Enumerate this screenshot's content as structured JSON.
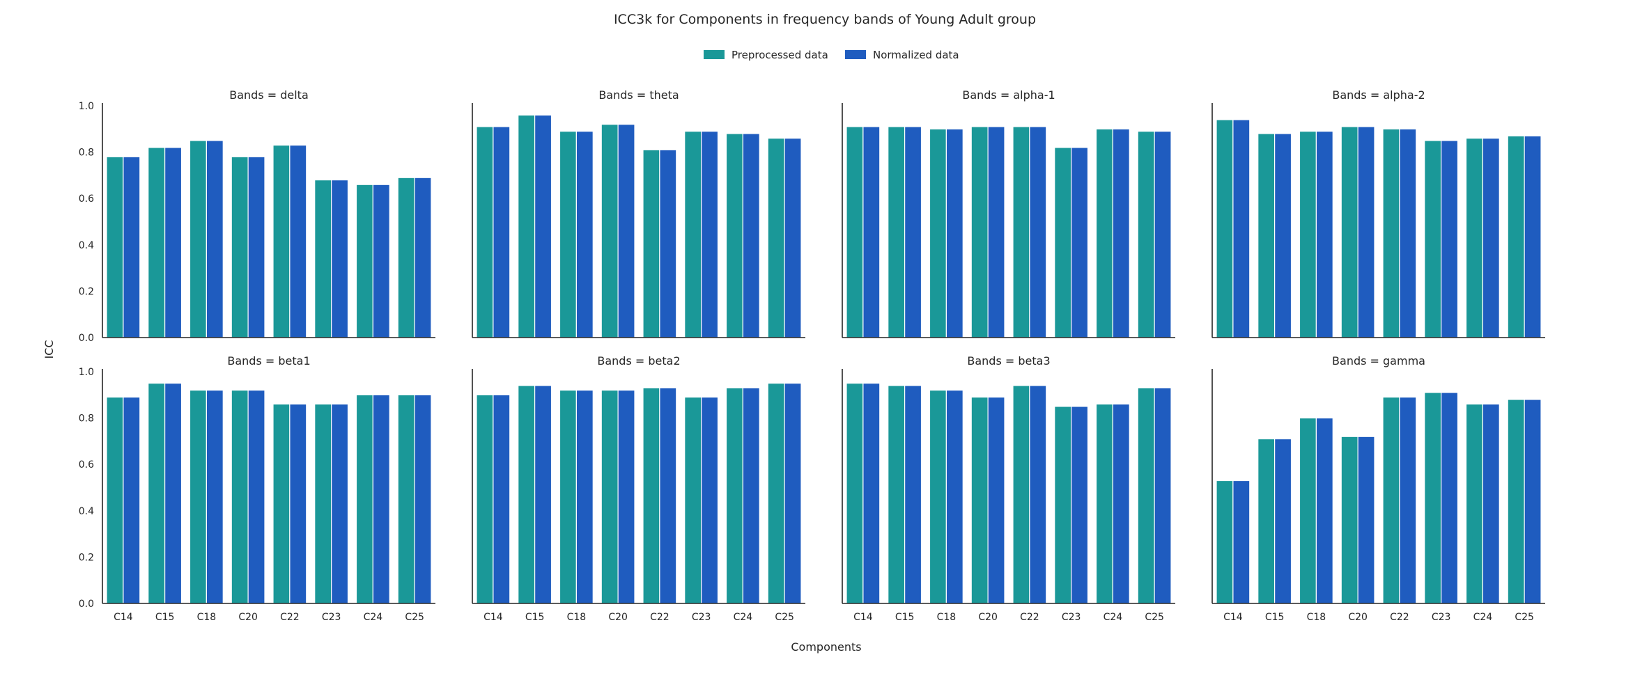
{
  "chart_data": {
    "type": "bar",
    "title": "ICC3k for Components in frequency bands of Young Adult group",
    "xlabel": "Components",
    "ylabel": "ICC",
    "ylim": [
      0,
      1
    ],
    "yticks": [
      "0.0",
      "0.2",
      "0.4",
      "0.6",
      "0.8",
      "1.0"
    ],
    "legend_position": "top-center",
    "categories": [
      "C14",
      "C15",
      "C18",
      "C20",
      "C22",
      "C23",
      "C24",
      "C25"
    ],
    "series_info": [
      {
        "name": "Preprocessed data",
        "color": "#1a9898"
      },
      {
        "name": "Normalized data",
        "color": "#1f5cbf"
      }
    ],
    "panels": [
      {
        "title": "Bands = delta",
        "preprocessed": [
          0.78,
          0.82,
          0.85,
          0.78,
          0.83,
          0.68,
          0.66,
          0.69
        ],
        "normalized": [
          0.78,
          0.82,
          0.85,
          0.78,
          0.83,
          0.68,
          0.66,
          0.69
        ]
      },
      {
        "title": "Bands = theta",
        "preprocessed": [
          0.91,
          0.96,
          0.89,
          0.92,
          0.81,
          0.89,
          0.88,
          0.86
        ],
        "normalized": [
          0.91,
          0.96,
          0.89,
          0.92,
          0.81,
          0.89,
          0.88,
          0.86
        ]
      },
      {
        "title": "Bands = alpha-1",
        "preprocessed": [
          0.91,
          0.91,
          0.9,
          0.91,
          0.91,
          0.82,
          0.9,
          0.89
        ],
        "normalized": [
          0.91,
          0.91,
          0.9,
          0.91,
          0.91,
          0.82,
          0.9,
          0.89
        ]
      },
      {
        "title": "Bands = alpha-2",
        "preprocessed": [
          0.94,
          0.88,
          0.89,
          0.91,
          0.9,
          0.85,
          0.86,
          0.87
        ],
        "normalized": [
          0.94,
          0.88,
          0.89,
          0.91,
          0.9,
          0.85,
          0.86,
          0.87
        ]
      },
      {
        "title": "Bands = beta1",
        "preprocessed": [
          0.89,
          0.95,
          0.92,
          0.92,
          0.86,
          0.86,
          0.9,
          0.9
        ],
        "normalized": [
          0.89,
          0.95,
          0.92,
          0.92,
          0.86,
          0.86,
          0.9,
          0.9
        ]
      },
      {
        "title": "Bands = beta2",
        "preprocessed": [
          0.9,
          0.94,
          0.92,
          0.92,
          0.93,
          0.89,
          0.93,
          0.95
        ],
        "normalized": [
          0.9,
          0.94,
          0.92,
          0.92,
          0.93,
          0.89,
          0.93,
          0.95
        ]
      },
      {
        "title": "Bands = beta3",
        "preprocessed": [
          0.95,
          0.94,
          0.92,
          0.89,
          0.94,
          0.85,
          0.86,
          0.93
        ],
        "normalized": [
          0.95,
          0.94,
          0.92,
          0.89,
          0.94,
          0.85,
          0.86,
          0.93
        ]
      },
      {
        "title": "Bands = gamma",
        "preprocessed": [
          0.53,
          0.71,
          0.8,
          0.72,
          0.89,
          0.91,
          0.86,
          0.88
        ],
        "normalized": [
          0.53,
          0.71,
          0.8,
          0.72,
          0.89,
          0.91,
          0.86,
          0.88
        ]
      }
    ]
  }
}
